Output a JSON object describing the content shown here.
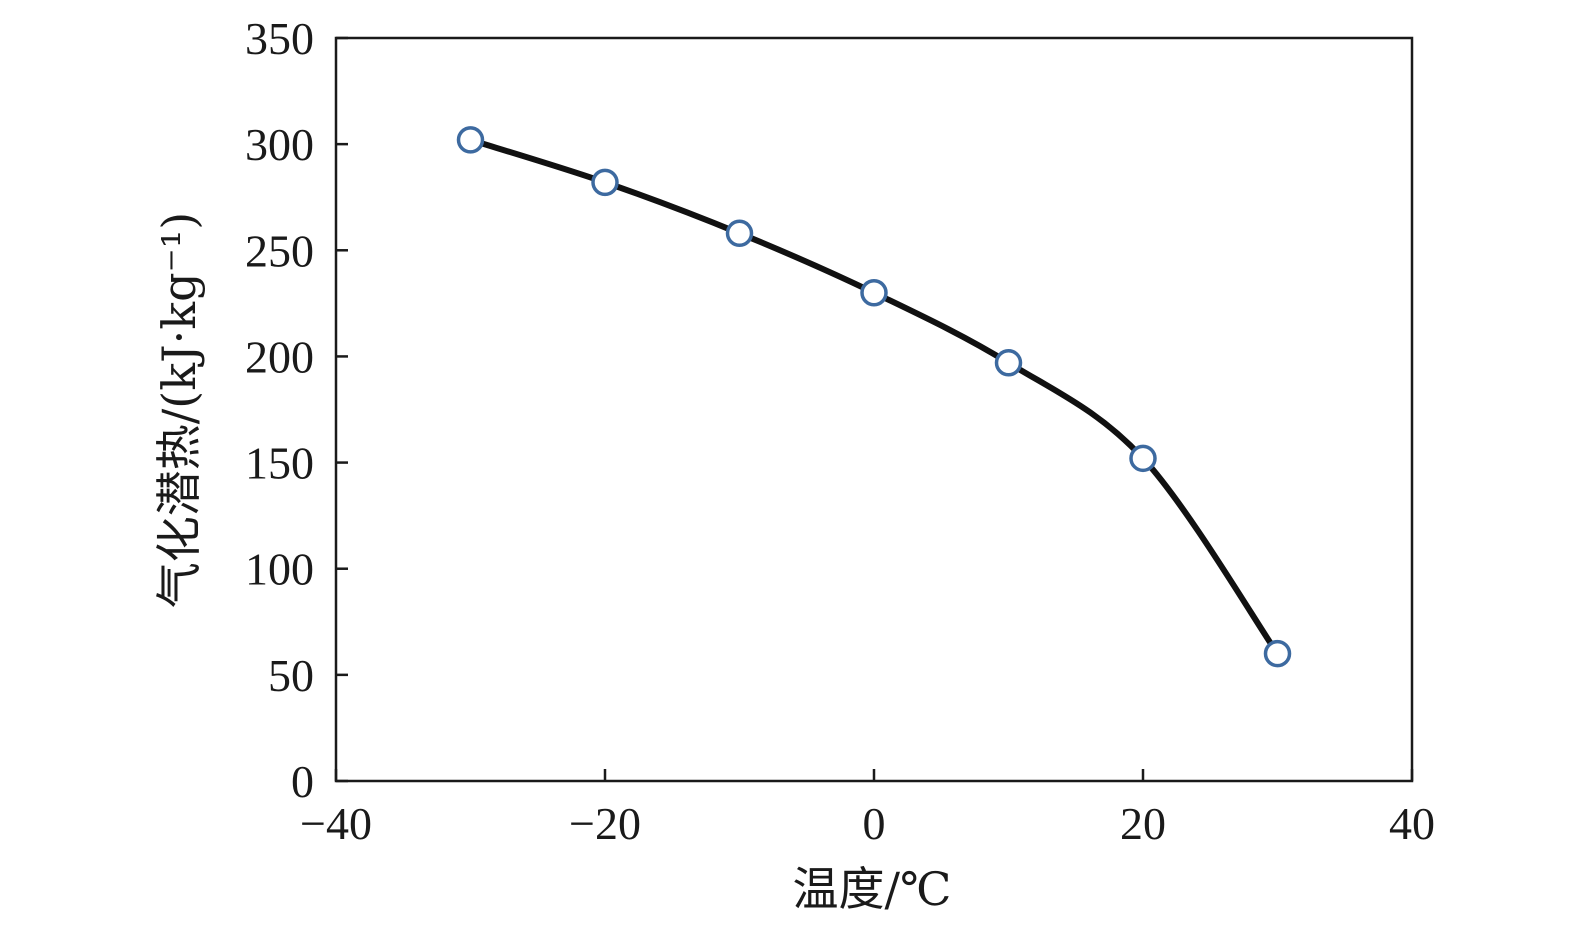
{
  "chart_data": {
    "type": "line",
    "xlabel": "温度/℃",
    "ylabel": "气化潜热/(kJ·kg⁻¹)",
    "xlim": [
      -40,
      40
    ],
    "ylim": [
      0,
      350
    ],
    "xticks": [
      -40,
      -20,
      0,
      20,
      40
    ],
    "yticks": [
      0,
      50,
      100,
      150,
      200,
      250,
      300,
      350
    ],
    "xtick_labels": [
      "−40",
      "−20",
      "0",
      "20",
      "40"
    ],
    "ytick_labels": [
      "0",
      "50",
      "100",
      "150",
      "200",
      "250",
      "300",
      "350"
    ],
    "grid": false,
    "legend": "none",
    "series": [
      {
        "x": [
          -30,
          -20,
          -10,
          0,
          10,
          20,
          30
        ],
        "values": [
          302,
          282,
          258,
          230,
          197,
          152,
          60
        ],
        "line_color": "#111111",
        "marker_color": "#3d6aa0"
      }
    ]
  }
}
